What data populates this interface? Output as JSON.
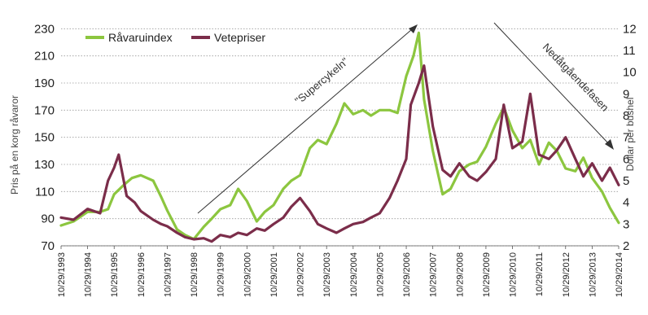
{
  "chart_data": {
    "type": "line",
    "title": "",
    "xlabel": "",
    "ylabel": "Pris på en korg råvaror",
    "ylabel_right": "Dollar per bushel",
    "ylim": [
      70,
      238
    ],
    "ylim_right": [
      2,
      12.5
    ],
    "yticks": [
      70,
      90,
      110,
      130,
      150,
      170,
      190,
      210,
      230
    ],
    "yticks_right_labels": [
      "2",
      "3",
      "4",
      "5",
      "6",
      "7",
      "8",
      "9",
      "10",
      "11",
      "12"
    ],
    "xlim": [
      1993.83,
      2014.83
    ],
    "x_tick_labels": [
      "10/29/1993",
      "10/29/1994",
      "10/29/1995",
      "10/29/1996",
      "10/29/1997",
      "10/29/1998",
      "10/29/1999",
      "10/29/2000",
      "10/29/2001",
      "10/29/2002",
      "10/29/2003",
      "10/29/2004",
      "10/29/2005",
      "10/29/2006",
      "10/29/2007",
      "10/29/2008",
      "10/29/2009",
      "10/29/2010",
      "10/29/2011",
      "10/29/2012",
      "10/29/2013",
      "10/29/2014"
    ],
    "grid": true,
    "legend_position": "top-left",
    "annotations": [
      "\"Supercykeln\"",
      "Nedåtgåendefasen"
    ],
    "series": [
      {
        "name": "Råvaruindex",
        "color": "#8cc63f",
        "axis": "left",
        "x": [
          1993.83,
          1994.3,
          1994.83,
          1995.3,
          1995.6,
          1995.83,
          1996.2,
          1996.5,
          1996.83,
          1997.3,
          1997.6,
          1997.83,
          1998.2,
          1998.5,
          1998.83,
          1999.2,
          1999.5,
          1999.83,
          2000.2,
          2000.5,
          2000.83,
          2001.2,
          2001.5,
          2001.83,
          2002.2,
          2002.5,
          2002.83,
          2003.2,
          2003.5,
          2003.83,
          2004.2,
          2004.5,
          2004.83,
          2005.2,
          2005.5,
          2005.83,
          2006.2,
          2006.5,
          2006.83,
          2007.1,
          2007.3,
          2007.5,
          2007.83,
          2008.2,
          2008.5,
          2008.83,
          2009.2,
          2009.5,
          2009.83,
          2010.2,
          2010.5,
          2010.83,
          2011.2,
          2011.5,
          2011.83,
          2012.2,
          2012.5,
          2012.83,
          2013.2,
          2013.5,
          2013.83,
          2014.2,
          2014.5,
          2014.83
        ],
        "values": [
          85,
          88,
          95,
          95,
          97,
          108,
          115,
          120,
          122,
          118,
          106,
          96,
          82,
          78,
          75,
          84,
          90,
          97,
          100,
          112,
          103,
          88,
          95,
          100,
          112,
          118,
          122,
          142,
          148,
          145,
          160,
          175,
          167,
          170,
          166,
          170,
          170,
          168,
          195,
          210,
          227,
          178,
          140,
          108,
          112,
          125,
          130,
          132,
          143,
          160,
          172,
          155,
          142,
          148,
          130,
          146,
          140,
          127,
          125,
          135,
          120,
          110,
          98,
          87
        ]
      },
      {
        "name": "Vetepriser",
        "color": "#7b2d4a",
        "axis": "right",
        "x": [
          1993.83,
          1994.3,
          1994.83,
          1995.3,
          1995.6,
          1995.83,
          1996.0,
          1996.3,
          1996.6,
          1996.83,
          1997.3,
          1997.6,
          1997.83,
          1998.2,
          1998.5,
          1998.83,
          1999.2,
          1999.5,
          1999.83,
          2000.2,
          2000.5,
          2000.83,
          2001.2,
          2001.5,
          2001.83,
          2002.2,
          2002.5,
          2002.83,
          2003.2,
          2003.5,
          2003.83,
          2004.2,
          2004.5,
          2004.83,
          2005.2,
          2005.5,
          2005.83,
          2006.2,
          2006.5,
          2006.83,
          2007.0,
          2007.3,
          2007.5,
          2007.83,
          2008.2,
          2008.5,
          2008.83,
          2009.2,
          2009.5,
          2009.83,
          2010.2,
          2010.5,
          2010.83,
          2011.2,
          2011.5,
          2011.83,
          2012.2,
          2012.5,
          2012.83,
          2013.2,
          2013.5,
          2013.83,
          2014.2,
          2014.5,
          2014.83
        ],
        "values": [
          3.3,
          3.2,
          3.7,
          3.5,
          5.0,
          5.6,
          6.2,
          4.3,
          4.0,
          3.6,
          3.2,
          3.0,
          2.9,
          2.6,
          2.4,
          2.3,
          2.35,
          2.2,
          2.5,
          2.4,
          2.6,
          2.5,
          2.8,
          2.7,
          3.0,
          3.3,
          3.8,
          4.2,
          3.6,
          3.0,
          2.8,
          2.6,
          2.8,
          3.0,
          3.1,
          3.3,
          3.5,
          4.2,
          5.0,
          6.0,
          8.5,
          9.5,
          10.3,
          7.5,
          5.5,
          5.2,
          5.8,
          5.2,
          5.0,
          5.4,
          6.0,
          8.5,
          6.5,
          6.8,
          9.0,
          6.2,
          6.0,
          6.4,
          7.0,
          6.0,
          5.2,
          5.8,
          5.0,
          5.6,
          4.8
        ]
      }
    ]
  }
}
